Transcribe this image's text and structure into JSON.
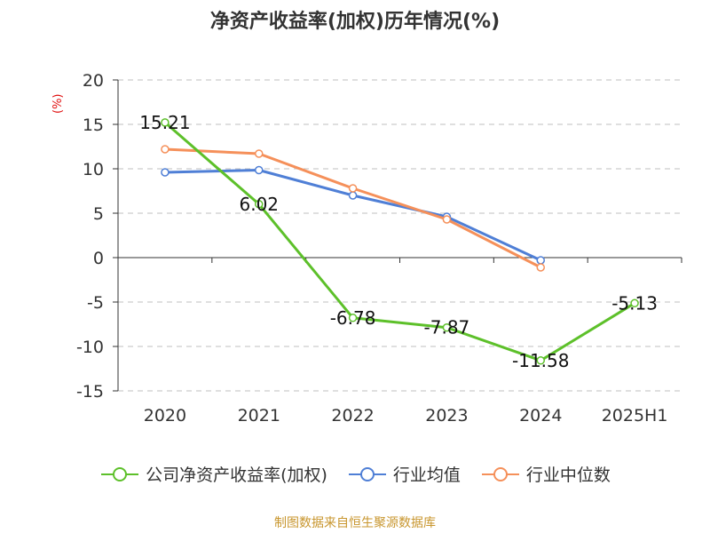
{
  "chart_data": {
    "type": "line",
    "title": "净资产收益率(加权)历年情况(%)",
    "ylabel": "(%)",
    "xlabel": "",
    "categories": [
      "2020",
      "2021",
      "2022",
      "2023",
      "2024",
      "2025H1"
    ],
    "ylim": [
      -15,
      20
    ],
    "yticks": [
      20,
      15,
      10,
      5,
      0,
      -5,
      -10,
      -15
    ],
    "grid": true,
    "legend_position": "bottom",
    "series": [
      {
        "name": "公司净资产收益率(加权)",
        "color": "#5dc02a",
        "values": [
          15.21,
          6.02,
          -6.78,
          -7.87,
          -11.58,
          -5.13
        ],
        "labels": [
          "15.21",
          "6.02",
          "-6.78",
          "-7.87",
          "-11.58",
          "-5.13"
        ]
      },
      {
        "name": "行业均值",
        "color": "#4f7fd6",
        "values": [
          9.6,
          9.85,
          7.0,
          4.6,
          -0.3,
          null
        ]
      },
      {
        "name": "行业中位数",
        "color": "#f5905a",
        "values": [
          12.2,
          11.7,
          7.8,
          4.3,
          -1.1,
          null
        ]
      }
    ]
  },
  "footer": {
    "source": "制图数据来自恒生聚源数据库"
  }
}
